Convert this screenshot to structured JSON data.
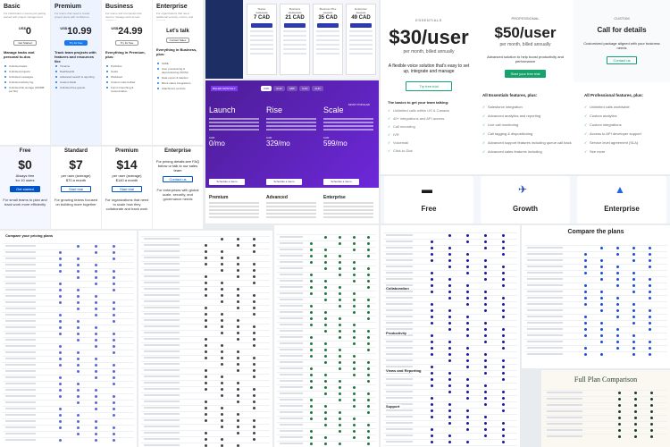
{
  "panel1": {
    "plans": [
      {
        "name": "Basic",
        "price_prefix": "",
        "price": "0",
        "currency": "US$",
        "button": "Get Started",
        "desc": "For individuals or teams just getting started with project management.",
        "headline": "Manage tasks and personal to-dos",
        "features": [
          "Unlimited tasks",
          "Unlimited projects",
          "Unlimited messages",
          "Unlimited activity log",
          "Unlimited file storage (100MB per file)"
        ]
      },
      {
        "name": "Premium",
        "price": "10.99",
        "currency": "US$",
        "button": "Try for free",
        "desc": "For teams that need to create project plans with confidence.",
        "headline": "Track team projects with features and resources like",
        "features": [
          "Timeline",
          "Dashboards",
          "Advanced search & reporting",
          "Custom fields",
          "Unlimited free guests"
        ]
      },
      {
        "name": "Business",
        "price": "24.99",
        "currency": "US$",
        "button": "Try for free",
        "desc": "For teams and companies that need to manage work across initiatives.",
        "headline": "Everything in Premium, plus:",
        "features": [
          "Portfolios",
          "Goals",
          "Workload",
          "Custom rules builder",
          "Forms branching & customization"
        ]
      },
      {
        "name": "Enterprise",
        "price": "Let's talk",
        "currency": "",
        "button": "Contact Sales",
        "desc": "For organizations that need additional security, control, and support.",
        "headline": "Everything in Business, plus:",
        "features": [
          "SAML",
          "User provisioning & deprovisioning (SCIM)",
          "Data export & deletion",
          "Block native integrations",
          "Attachment controls"
        ]
      }
    ]
  },
  "panel2": {
    "plans": [
      {
        "name": "Starter",
        "old": "9.60 CAD",
        "price": "7 CAD"
      },
      {
        "name": "Business",
        "old": "25.60 CAD",
        "price": "21 CAD"
      },
      {
        "name": "Business Plus",
        "old": "43 CAD",
        "price": "35 CAD"
      },
      {
        "name": "Enterprise",
        "old": "61 CAD",
        "price": "49 CAD"
      }
    ]
  },
  "panel3": {
    "price": "$30/user",
    "period": "per month, billed annually",
    "desc": "A flexible voice solution that's easy to set up, integrate and manage",
    "button": "Try free trial"
  },
  "panel4": {
    "plans": [
      {
        "label": "PROFESSIONAL",
        "price": "$50/user",
        "period": "per month, billed annually",
        "desc": "Advanced solution to help boost productivity and performance",
        "button": "Start your free trial"
      },
      {
        "label": "CUSTOM",
        "price": "Call for details",
        "period": "",
        "desc": "Customized package aligned with your business needs",
        "button": "Contact us"
      }
    ]
  },
  "panel5": {
    "plans": [
      {
        "name": "Launch",
        "price": "0/mo",
        "badge": "BILLED MONTHLY"
      },
      {
        "name": "Rise",
        "price": "329/mo",
        "badge": ""
      },
      {
        "name": "Scale",
        "price": "599/mo",
        "badge": "MOST POPULAR"
      }
    ],
    "tabs": [
      "USD",
      "EUR",
      "GBP",
      "CAD",
      "AUD"
    ],
    "currency": "CAD",
    "bottom": [
      "Premium",
      "Advanced",
      "Enterprise"
    ],
    "button": "Schedule a demo"
  },
  "panel6": {
    "plans": [
      {
        "name": "Free",
        "price": "$0",
        "sub": "Always free",
        "sub2": "for 10 users",
        "button": "Get started",
        "desc": "For small teams to plan and track work more efficiently"
      },
      {
        "name": "Standard",
        "price": "$7",
        "sub": "per user (average)",
        "sub2": "$70 a month",
        "button": "Start trial",
        "desc": "For growing teams focused on building more together"
      },
      {
        "name": "Premium",
        "price": "$14",
        "sub": "per user (average)",
        "sub2": "$140 a month",
        "button": "Start trial",
        "desc": "For organizations that need to scale how they collaborate and track work"
      },
      {
        "name": "Enterprise",
        "price": "",
        "sub": "For pricing details see FAQ below or talk to our sales team",
        "sub2": "",
        "button": "Contact us",
        "desc": "For enterprises with global scale, security, and governance needs"
      }
    ]
  },
  "panel7": {
    "list_a": "All Essentials features, plus:",
    "list_b": "All Professional features, plus:",
    "items_a": [
      "Salesforce integration",
      "Advanced analytics and reporting",
      "Live call monitoring",
      "Call tagging & dispositioning",
      "Advanced support features including queue call back",
      "Advanced sales features including"
    ],
    "items_b": [
      "Unlimited calls worldwide",
      "Custom analytics",
      "Custom integrations",
      "Access to API developer support",
      "Service level agreement (SLA)",
      "See more"
    ],
    "essentials_items": [
      "Unlimited calls within US & Canada",
      "40+ integrations and API access",
      "Call recording",
      "IVR",
      "Voicemail",
      "Click-to-Dial"
    ],
    "essentials_head": "The basics to get your team talking:"
  },
  "panel8": {
    "plans": [
      "Free",
      "Growth",
      "Enterprise"
    ]
  },
  "panel9": {
    "title": "Compare your pricing plans",
    "title2": "Compare the plans",
    "title3": "Full Plan Comparison",
    "sections": [
      "Collaboration",
      "Productivity",
      "Views and Reporting",
      "Support"
    ]
  },
  "colors": {
    "purple": "#5b21b6",
    "blue": "#1877f2",
    "navy": "#1e2a78",
    "green": "#14a36b",
    "jira": "#0052cc"
  }
}
